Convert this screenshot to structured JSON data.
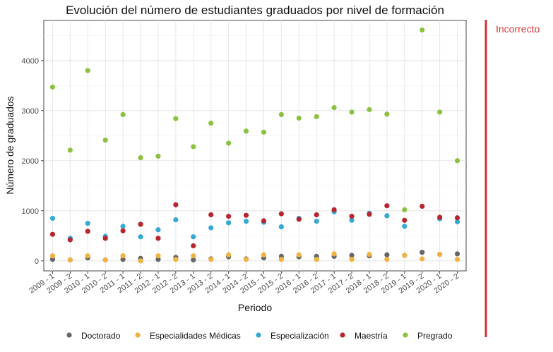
{
  "chart_data": {
    "type": "scatter",
    "title": "Evolución del número de estudiantes graduados por nivel de formación",
    "xlabel": "Periodo",
    "ylabel": "Número de graduados",
    "categories": [
      "2009 - 1",
      "2009 - 2",
      "2010 - 1",
      "2010 - 2",
      "2011 - 1",
      "2011 - 2",
      "2012 - 1",
      "2012 - 2",
      "2013 - 1",
      "2013 - 2",
      "2014 - 1",
      "2014 - 2",
      "2015 - 1",
      "2015 - 2",
      "2016 - 1",
      "2016 - 2",
      "2017 - 1",
      "2017 - 2",
      "2018 - 1",
      "2018 - 2",
      "2019 - 1",
      "2019 - 2",
      "2020 - 1",
      "2020 - 2"
    ],
    "ylim": [
      -200,
      4800
    ],
    "yticks": [
      0,
      1000,
      2000,
      3000,
      4000
    ],
    "grid": true,
    "legend_position": "bottom",
    "series": [
      {
        "name": "Doctorado",
        "color": "#666666",
        "values": [
          30,
          20,
          60,
          20,
          30,
          50,
          30,
          70,
          20,
          40,
          80,
          40,
          60,
          90,
          80,
          90,
          90,
          110,
          100,
          120,
          110,
          170,
          130,
          140
        ]
      },
      {
        "name": "Especialidades Médicas",
        "color": "#f0b240",
        "values": [
          100,
          20,
          100,
          20,
          100,
          0,
          100,
          30,
          100,
          30,
          120,
          30,
          120,
          30,
          120,
          30,
          140,
          30,
          130,
          30,
          110,
          40,
          130,
          30
        ]
      },
      {
        "name": "Especialización",
        "color": "#35a8d6",
        "values": [
          850,
          450,
          750,
          490,
          690,
          480,
          620,
          820,
          480,
          660,
          760,
          790,
          770,
          680,
          850,
          790,
          980,
          810,
          950,
          900,
          690,
          null,
          840,
          780
        ]
      },
      {
        "name": "Maestría",
        "color": "#b8252e",
        "values": [
          530,
          420,
          590,
          450,
          600,
          730,
          450,
          1120,
          300,
          920,
          890,
          910,
          800,
          940,
          830,
          920,
          1020,
          890,
          930,
          1100,
          810,
          1090,
          870,
          860
        ]
      },
      {
        "name": "Pregrado",
        "color": "#8cc140",
        "values": [
          3470,
          2210,
          3800,
          2410,
          2920,
          2060,
          2090,
          2840,
          2280,
          2750,
          2350,
          2590,
          2570,
          2920,
          2850,
          2880,
          3060,
          2970,
          3020,
          2930,
          1020,
          4610,
          2970,
          2000
        ]
      }
    ]
  },
  "side_annotation": {
    "label": "Incorrecto",
    "color": "#cc3333"
  }
}
